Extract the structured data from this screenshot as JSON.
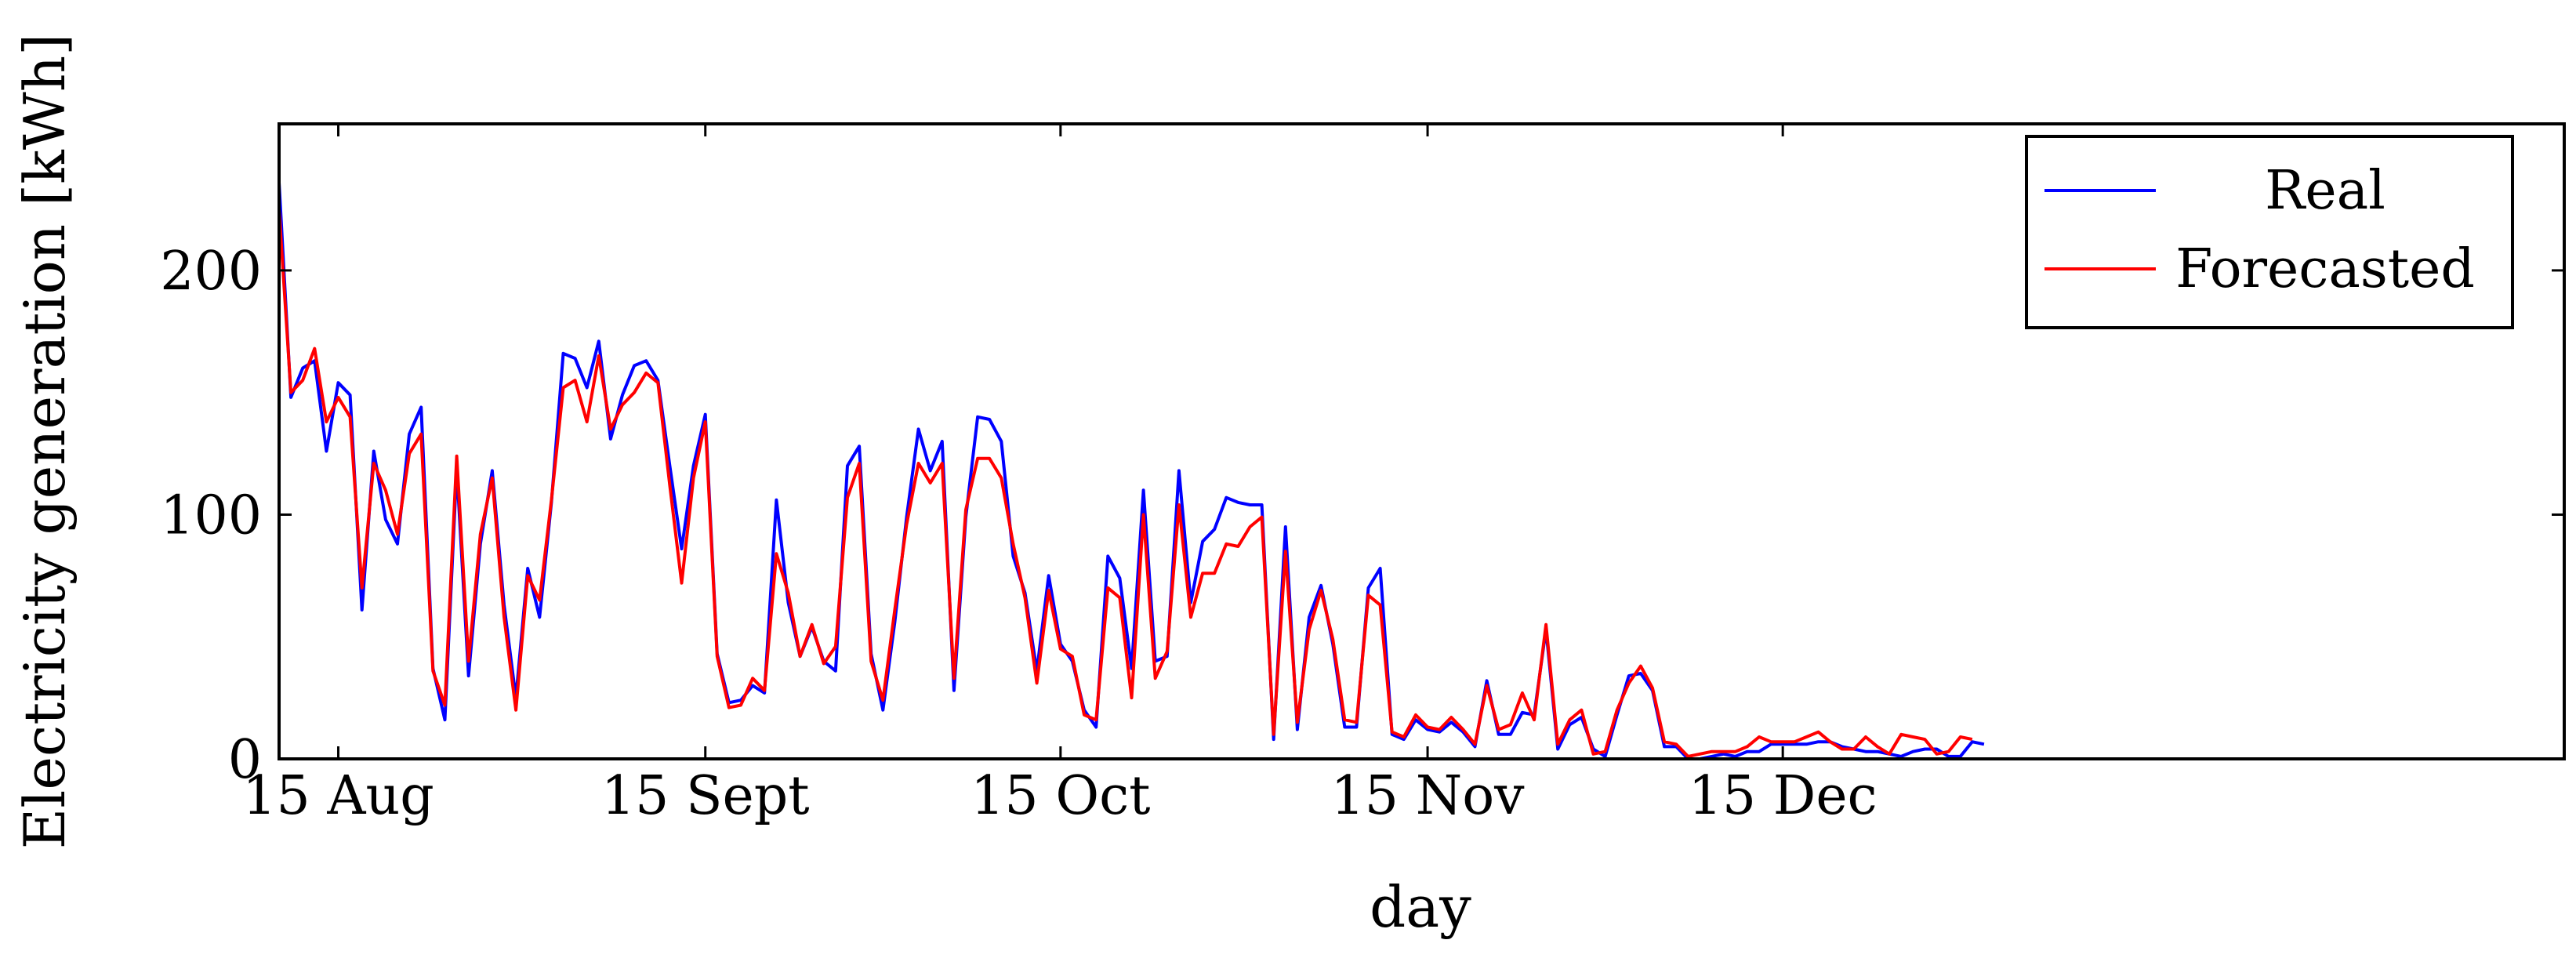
{
  "chart_data": {
    "type": "line",
    "title": "",
    "xlabel": "day",
    "ylabel": "Electricity generation [kWh]",
    "xlim": [
      -5,
      188
    ],
    "ylim": [
      0,
      260
    ],
    "yticks": [
      0,
      100,
      200
    ],
    "xticks": [
      {
        "x": 0,
        "label": "15 Aug"
      },
      {
        "x": 31,
        "label": "15 Sept"
      },
      {
        "x": 61,
        "label": "15 Oct"
      },
      {
        "x": 92,
        "label": "15 Nov"
      },
      {
        "x": 122,
        "label": "15 Dec"
      }
    ],
    "grid": false,
    "legend": "top-right",
    "x_start": -5,
    "series": [
      {
        "name": "Real",
        "color": "#0000ff",
        "values": [
          236,
          148,
          160,
          163,
          126,
          154,
          149,
          61,
          126,
          98,
          88,
          133,
          144,
          37,
          16,
          119,
          34,
          88,
          118,
          63,
          25,
          78,
          58,
          105,
          166,
          164,
          152,
          171,
          131,
          149,
          161,
          163,
          155,
          120,
          86,
          120,
          141,
          43,
          23,
          24,
          30,
          27,
          106,
          64,
          42,
          54,
          40,
          36,
          120,
          128,
          43,
          20,
          56,
          99,
          135,
          118,
          130,
          28,
          99,
          140,
          139,
          130,
          83,
          68,
          36,
          75,
          47,
          40,
          20,
          13,
          83,
          74,
          37,
          110,
          40,
          42,
          118,
          64,
          89,
          94,
          107,
          105,
          104,
          104,
          8,
          95,
          12,
          58,
          71,
          47,
          13,
          13,
          70,
          78,
          10,
          8,
          16,
          12,
          11,
          15,
          11,
          5,
          32,
          10,
          10,
          19,
          18,
          53,
          4,
          14,
          17,
          4,
          1,
          18,
          34,
          35,
          28,
          5,
          5,
          0,
          0,
          1,
          2,
          1,
          3,
          3,
          6,
          6,
          6,
          6,
          7,
          7,
          5,
          4,
          3,
          3,
          2,
          1,
          3,
          4,
          4,
          1,
          1,
          7,
          6
        ],
        "values_x": null
      },
      {
        "name": "Forecasted",
        "color": "#ff0000",
        "values": [
          225,
          150,
          155,
          168,
          138,
          148,
          140,
          70,
          121,
          110,
          92,
          125,
          133,
          36,
          22,
          124,
          40,
          92,
          115,
          58,
          20,
          75,
          65,
          106,
          152,
          155,
          138,
          165,
          135,
          145,
          150,
          158,
          154,
          112,
          72,
          115,
          138,
          42,
          21,
          22,
          33,
          28,
          84,
          68,
          42,
          55,
          39,
          46,
          107,
          121,
          40,
          24,
          61,
          96,
          121,
          113,
          121,
          33,
          102,
          123,
          123,
          115,
          88,
          66,
          31,
          69,
          45,
          42,
          18,
          16,
          70,
          66,
          25,
          100,
          33,
          44,
          104,
          58,
          76,
          76,
          88,
          87,
          95,
          99,
          10,
          85,
          15,
          53,
          69,
          49,
          16,
          15,
          67,
          63,
          11,
          9,
          18,
          13,
          12,
          17,
          12,
          6,
          30,
          12,
          14,
          27,
          16,
          55,
          6,
          16,
          20,
          2,
          3,
          20,
          31,
          38,
          29,
          7,
          6,
          1,
          2,
          3,
          3,
          3,
          5,
          9,
          7,
          7,
          7,
          9,
          11,
          7,
          4,
          4,
          9,
          5,
          2,
          10,
          9,
          8,
          2,
          3,
          9,
          8
        ],
        "values_x": null
      }
    ]
  }
}
